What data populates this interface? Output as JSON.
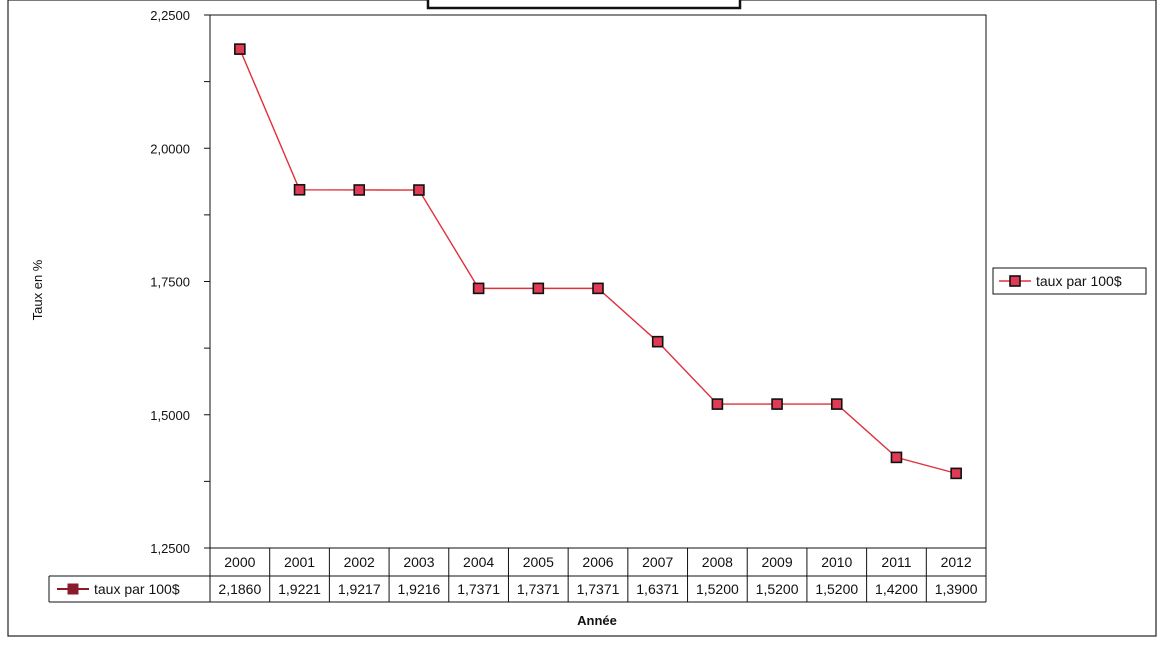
{
  "chart_data": {
    "type": "line",
    "title": "",
    "xlabel": "Année",
    "ylabel": "Taux en %",
    "categories": [
      "2000",
      "2001",
      "2002",
      "2003",
      "2004",
      "2005",
      "2006",
      "2007",
      "2008",
      "2009",
      "2010",
      "2011",
      "2012"
    ],
    "series": [
      {
        "name": "taux par 100$",
        "values": [
          2.186,
          1.9221,
          1.9217,
          1.9216,
          1.7371,
          1.7371,
          1.7371,
          1.6371,
          1.52,
          1.52,
          1.52,
          1.42,
          1.39
        ],
        "table_labels": [
          "2,1860",
          "1,9221",
          "1,9217",
          "1,9216",
          "1,7371",
          "1,7371",
          "1,7371",
          "1,6371",
          "1,5200",
          "1,5200",
          "1,5200",
          "1,4200",
          "1,3900"
        ]
      }
    ],
    "yticks": [
      {
        "value": 2.25,
        "label": "2,2500"
      },
      {
        "value": 2.0,
        "label": "2,0000"
      },
      {
        "value": 1.75,
        "label": "1,7500"
      },
      {
        "value": 1.5,
        "label": "1,5000"
      },
      {
        "value": 1.25,
        "label": "1,2500"
      }
    ],
    "ylim": [
      1.25,
      2.25
    ],
    "grid": false,
    "legend": {
      "placement": "right",
      "label": "taux par 100$"
    },
    "data_table": true,
    "colors": {
      "line": "#e0303a",
      "marker_fill": "#e03a55",
      "marker_edge": "#111111",
      "table_legend": "#8b1a2b"
    }
  }
}
